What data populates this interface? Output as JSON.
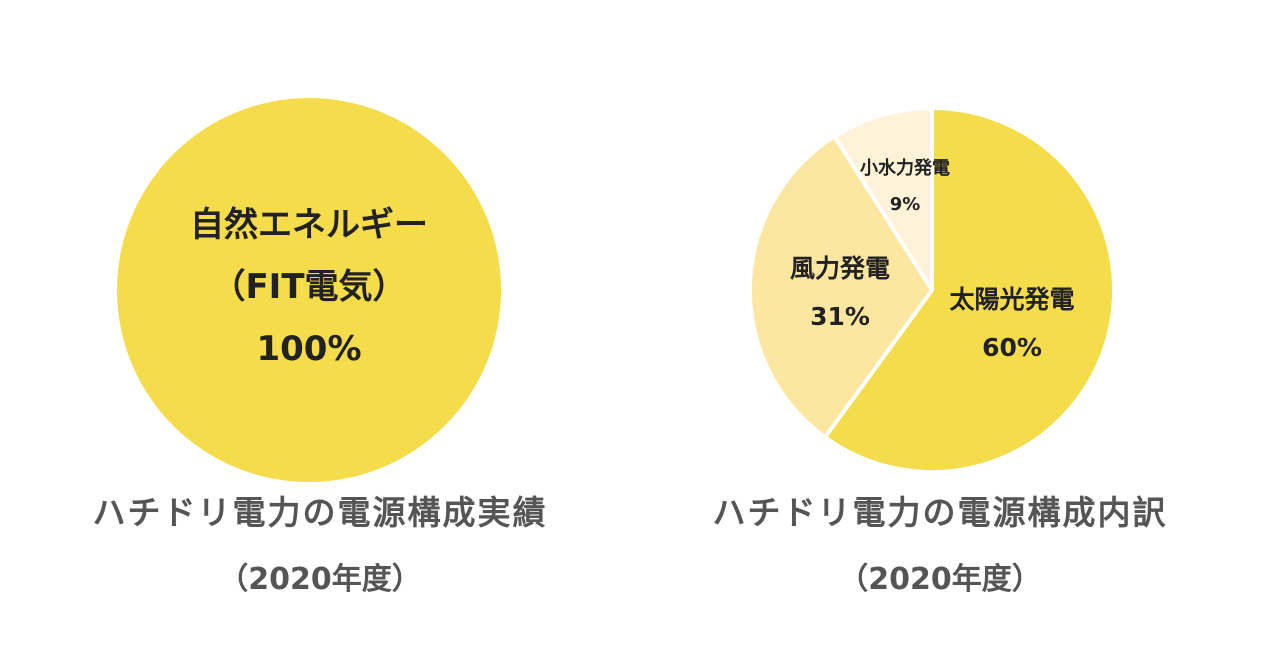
{
  "chart_data": [
    {
      "type": "pie",
      "title": "ハチドリ電力の電源構成実績",
      "subtitle": "（2020年度）",
      "slices": [
        {
          "label_lines": [
            "自然エネルギー",
            "（FIT電気）"
          ],
          "value": 100,
          "value_label": "100%",
          "color": "#F5DC4B"
        }
      ]
    },
    {
      "type": "pie",
      "title": "ハチドリ電力の電源構成内訳",
      "subtitle": "（2020年度）",
      "slices": [
        {
          "label": "太陽光発電",
          "value": 60,
          "value_label": "60%",
          "color": "#F5DC4B"
        },
        {
          "label": "風力発電",
          "value": 31,
          "value_label": "31%",
          "color": "#FCE6A0"
        },
        {
          "label": "小水力発電",
          "value": 9,
          "value_label": "9%",
          "color": "#FEF3D8"
        }
      ]
    }
  ]
}
